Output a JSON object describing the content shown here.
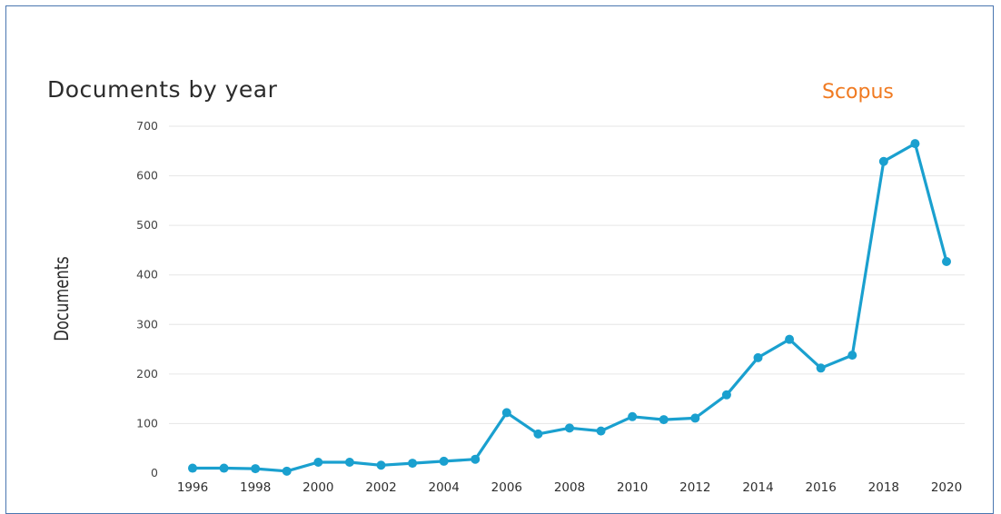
{
  "chart": {
    "title": "Documents by year",
    "brand": "Scopus",
    "ylabel": "Documents"
  },
  "colors": {
    "line": "#1aa0cf",
    "brand": "#f07a21",
    "grid": "#e6e6e6",
    "frame": "#4a76b0"
  },
  "chart_data": {
    "type": "line",
    "title": "Documents by year",
    "xlabel": "",
    "ylabel": "Documents",
    "ylim": [
      0,
      700
    ],
    "yticks": [
      0,
      100,
      200,
      300,
      400,
      500,
      600,
      700
    ],
    "xticks": [
      1996,
      1998,
      2000,
      2002,
      2004,
      2006,
      2008,
      2010,
      2012,
      2014,
      2016,
      2018,
      2020
    ],
    "grid": true,
    "x": [
      1996,
      1997,
      1998,
      1999,
      2000,
      2001,
      2002,
      2003,
      2004,
      2005,
      2006,
      2007,
      2008,
      2009,
      2010,
      2011,
      2012,
      2013,
      2014,
      2015,
      2016,
      2017,
      2018,
      2019,
      2020
    ],
    "series": [
      {
        "values": [
          10,
          10,
          9,
          4,
          22,
          22,
          16,
          20,
          24,
          28,
          122,
          79,
          91,
          85,
          114,
          108,
          111,
          158,
          233,
          270,
          212,
          238,
          629,
          665,
          427
        ]
      }
    ]
  }
}
